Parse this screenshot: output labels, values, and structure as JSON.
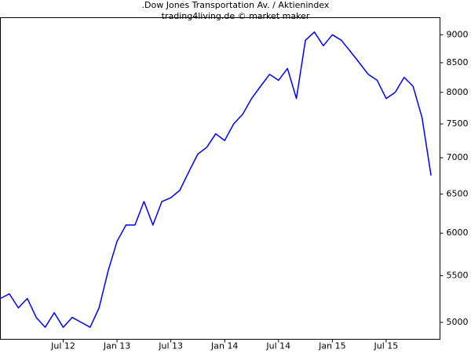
{
  "chart_data": {
    "type": "line",
    "title": ".Dow Jones Transportation Av. / Aktienindex",
    "subtitle": "trading4living.de © market maker",
    "x": [
      "2011-12",
      "2012-01",
      "2012-02",
      "2012-03",
      "2012-04",
      "2012-05",
      "2012-06",
      "2012-07",
      "2012-08",
      "2012-09",
      "2012-10",
      "2012-11",
      "2012-12",
      "2013-01",
      "2013-02",
      "2013-03",
      "2013-04",
      "2013-05",
      "2013-06",
      "2013-07",
      "2013-08",
      "2013-09",
      "2013-10",
      "2013-11",
      "2013-12",
      "2014-01",
      "2014-02",
      "2014-03",
      "2014-04",
      "2014-05",
      "2014-06",
      "2014-07",
      "2014-08",
      "2014-09",
      "2014-10",
      "2014-11",
      "2014-12",
      "2015-01",
      "2015-02",
      "2015-03",
      "2015-04",
      "2015-05",
      "2015-06",
      "2015-07",
      "2015-08",
      "2015-09",
      "2015-10",
      "2015-11",
      "2015-12"
    ],
    "series": [
      {
        "name": "Dow Jones Transportation Av.",
        "color": "#0000ee",
        "values": [
          5250,
          5300,
          5150,
          5250,
          5050,
          4950,
          5100,
          4950,
          5050,
          5000,
          4950,
          5150,
          5550,
          5900,
          6100,
          6100,
          6400,
          6100,
          6400,
          6450,
          6550,
          6800,
          7050,
          7150,
          7350,
          7250,
          7500,
          7650,
          7900,
          8100,
          8300,
          8200,
          8400,
          7900,
          8900,
          9050,
          8800,
          9000,
          8900,
          8700,
          8500,
          8300,
          8200,
          7900,
          8000,
          8250,
          8100,
          7600,
          6750
        ]
      }
    ],
    "xlim": [
      "2011-12",
      "2016-01"
    ],
    "xticks": [
      {
        "value": "2012-07",
        "label": "Jul 12"
      },
      {
        "value": "2013-01",
        "label": "Jan 13"
      },
      {
        "value": "2013-07",
        "label": "Jul 13"
      },
      {
        "value": "2014-01",
        "label": "Jan 14"
      },
      {
        "value": "2014-07",
        "label": "Jul 14"
      },
      {
        "value": "2015-01",
        "label": "Jan 15"
      },
      {
        "value": "2015-07",
        "label": "Jul 15"
      }
    ],
    "ylim": [
      4830,
      9320
    ],
    "yticks": [
      5000,
      5500,
      6000,
      6500,
      7000,
      7500,
      8000,
      8500,
      9000
    ],
    "log_scale": true,
    "grid": false
  }
}
